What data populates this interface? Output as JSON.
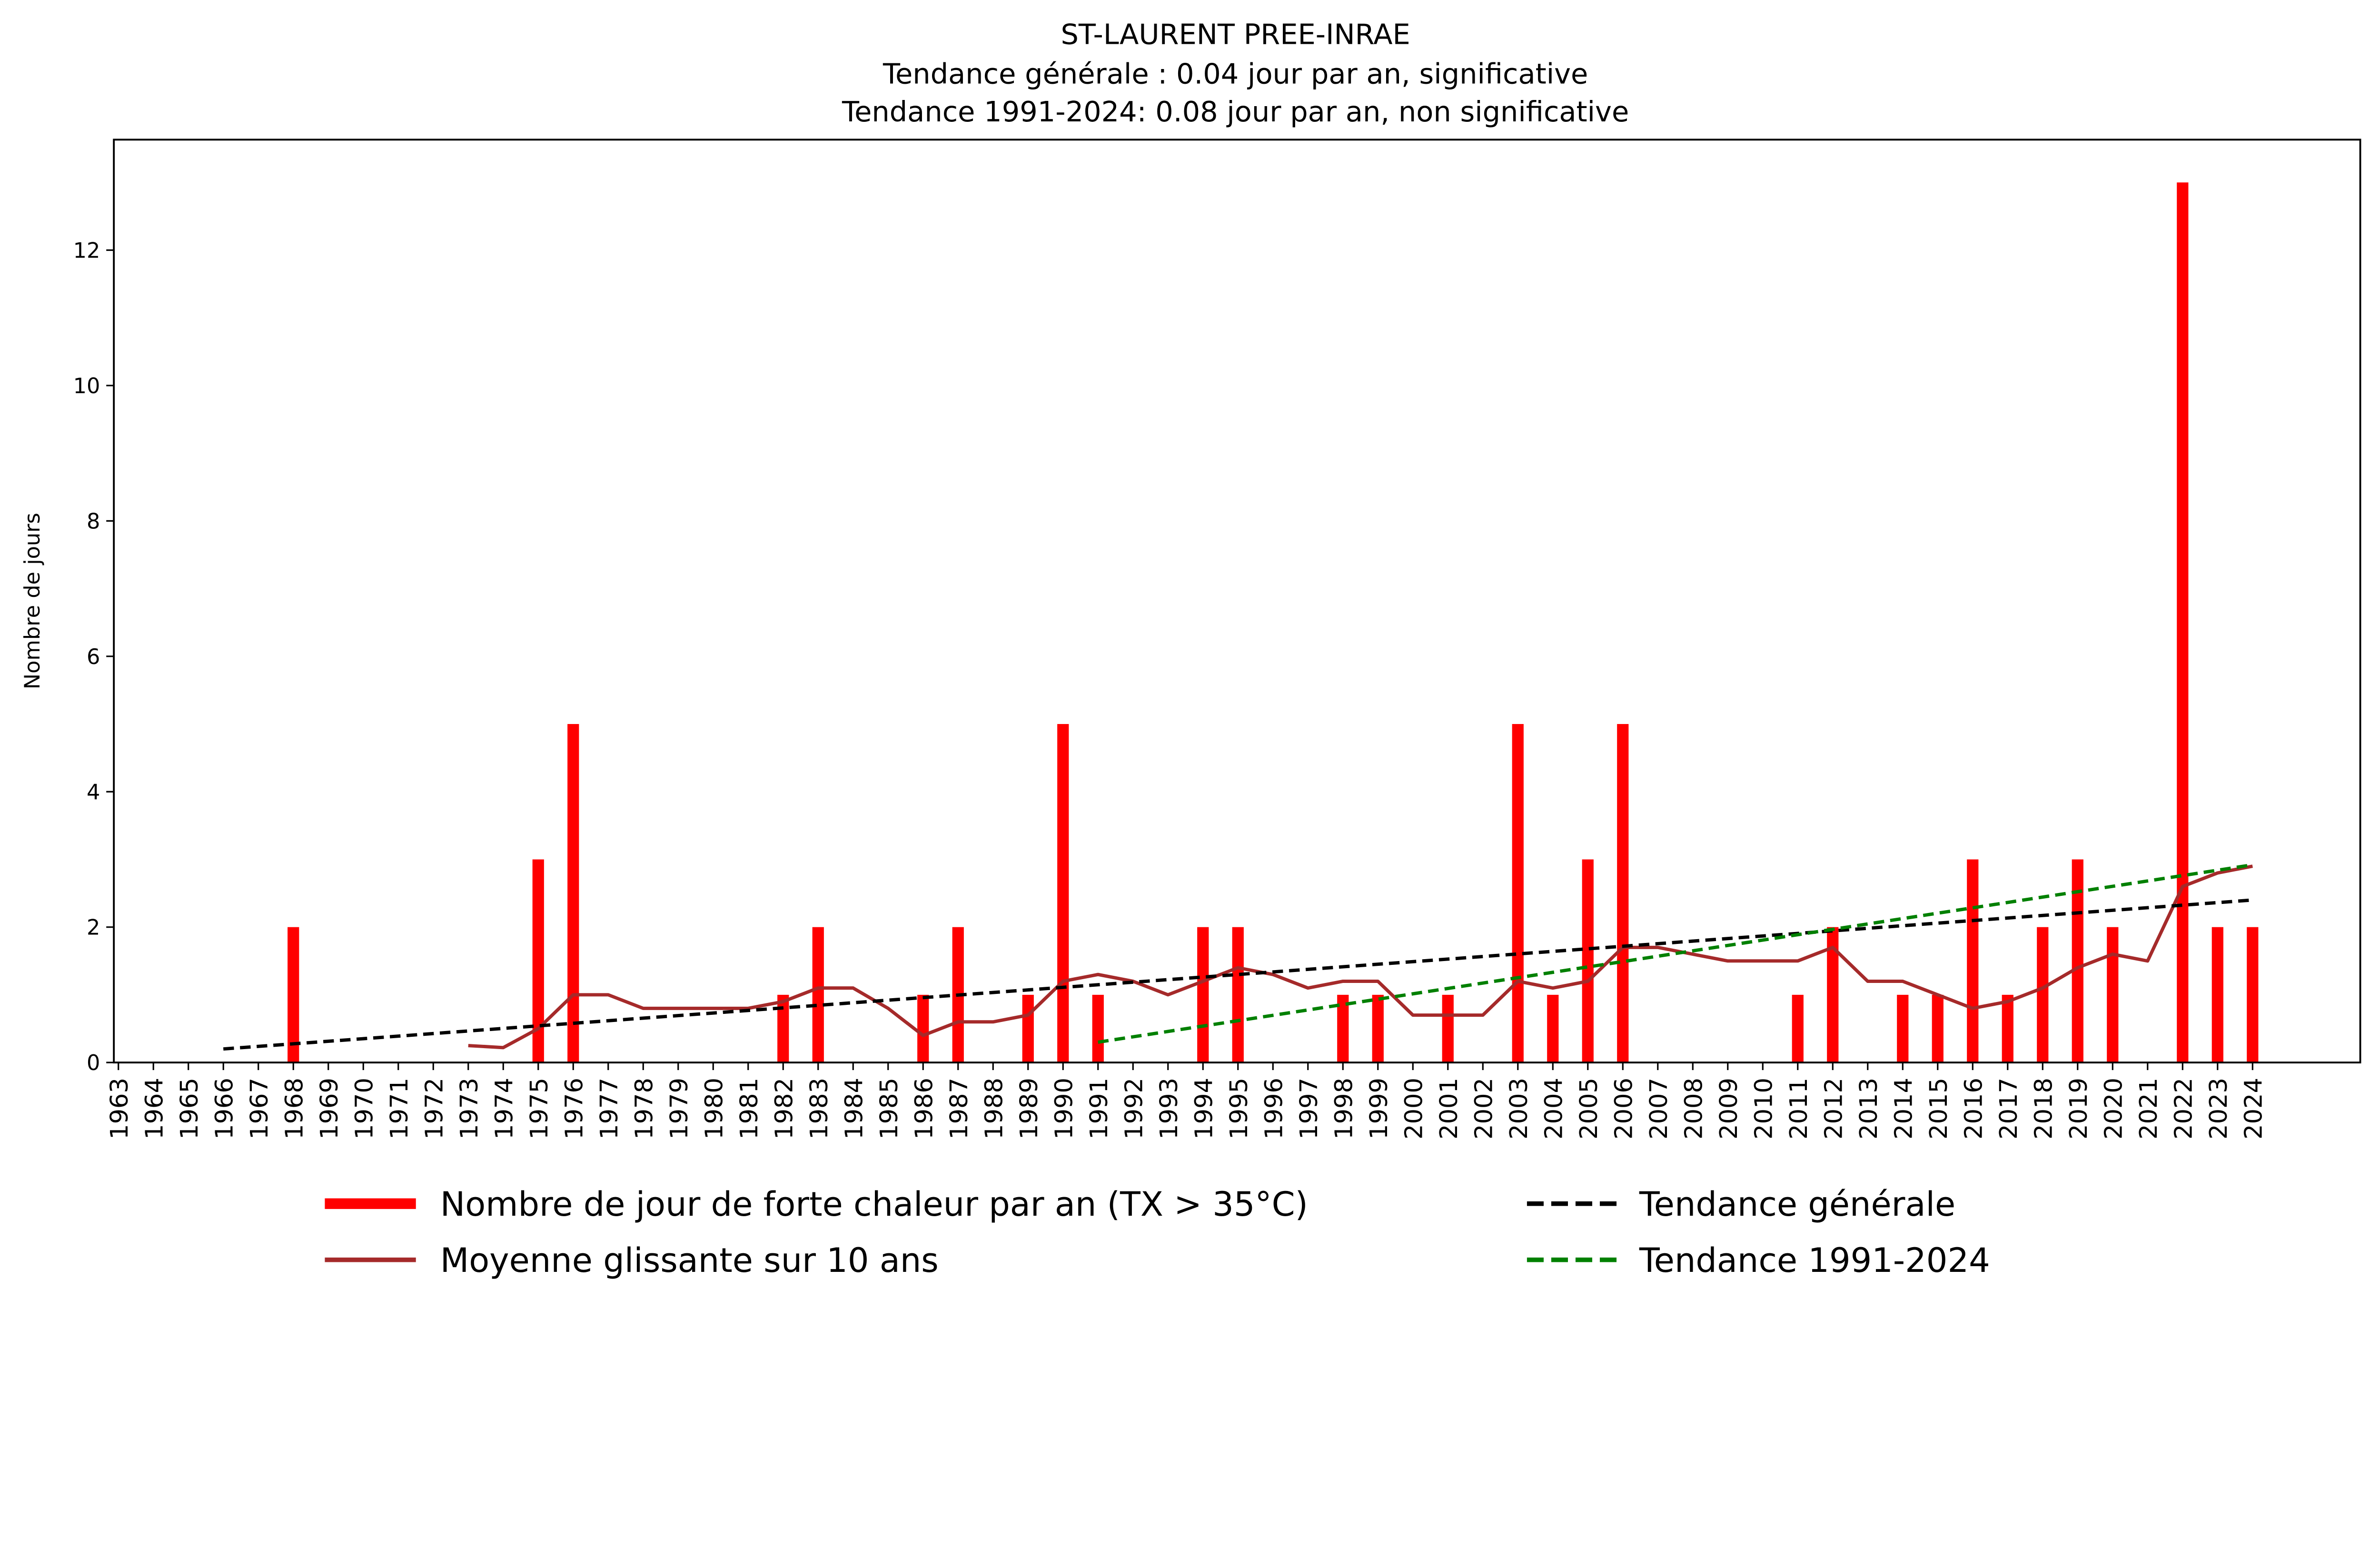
{
  "chart_data": {
    "type": "bar",
    "title": "ST-LAURENT PREE-INRAE",
    "subtitle1": "Tendance générale : 0.04 jour par an, significative",
    "subtitle2": "Tendance 1991-2024: 0.08 jour par an, non significative",
    "xlabel": "",
    "ylabel": "Nombre de jours",
    "ylim": [
      0,
      13.65
    ],
    "yticks": [
      0,
      2,
      4,
      6,
      8,
      10,
      12
    ],
    "years": [
      1963,
      1964,
      1965,
      1966,
      1967,
      1968,
      1969,
      1970,
      1971,
      1972,
      1973,
      1974,
      1975,
      1976,
      1977,
      1978,
      1979,
      1980,
      1981,
      1982,
      1983,
      1984,
      1985,
      1986,
      1987,
      1988,
      1989,
      1990,
      1991,
      1992,
      1993,
      1994,
      1995,
      1996,
      1997,
      1998,
      1999,
      2000,
      2001,
      2002,
      2003,
      2004,
      2005,
      2006,
      2007,
      2008,
      2009,
      2010,
      2011,
      2012,
      2013,
      2014,
      2015,
      2016,
      2017,
      2018,
      2019,
      2020,
      2021,
      2022,
      2023,
      2024
    ],
    "series": [
      {
        "name": "Nombre de jour de forte chaleur par an (TX > 35°C)",
        "type": "bar",
        "color": "#ff0000",
        "values": [
          0,
          0,
          0,
          0,
          0,
          2,
          0,
          0,
          0,
          0,
          0,
          0,
          3,
          5,
          0,
          0,
          0,
          0,
          0,
          1,
          2,
          0,
          0,
          1,
          2,
          0,
          1,
          5,
          1,
          0,
          0,
          2,
          2,
          0,
          0,
          1,
          1,
          0,
          1,
          0,
          5,
          1,
          3,
          5,
          0,
          0,
          0,
          0,
          1,
          2,
          0,
          1,
          1,
          3,
          1,
          2,
          3,
          2,
          0,
          13,
          2,
          2
        ]
      },
      {
        "name": "Moyenne glissante sur 10 ans",
        "type": "line",
        "color": "#a52a2a",
        "x": [
          1973,
          1974,
          1975,
          1976,
          1977,
          1978,
          1979,
          1980,
          1981,
          1982,
          1983,
          1984,
          1985,
          1986,
          1987,
          1988,
          1989,
          1990,
          1991,
          1992,
          1993,
          1994,
          1995,
          1996,
          1997,
          1998,
          1999,
          2000,
          2001,
          2002,
          2003,
          2004,
          2005,
          2006,
          2007,
          2008,
          2009,
          2010,
          2011,
          2012,
          2013,
          2014,
          2015,
          2016,
          2017,
          2018,
          2019,
          2020,
          2021,
          2022,
          2023,
          2024
        ],
        "values": [
          0.25,
          0.22,
          0.5,
          1.0,
          1.0,
          0.8,
          0.8,
          0.8,
          0.8,
          0.9,
          1.1,
          1.1,
          0.8,
          0.4,
          0.6,
          0.6,
          0.7,
          1.2,
          1.3,
          1.2,
          1.0,
          1.2,
          1.4,
          1.3,
          1.1,
          1.2,
          1.2,
          0.7,
          0.7,
          0.7,
          1.2,
          1.1,
          1.2,
          1.7,
          1.7,
          1.6,
          1.5,
          1.5,
          1.5,
          1.7,
          1.2,
          1.2,
          1.0,
          0.8,
          0.9,
          1.1,
          1.4,
          1.6,
          1.5,
          2.6,
          2.8,
          2.9
        ]
      },
      {
        "name": "Tendance générale",
        "type": "dashed-line",
        "color": "#000000",
        "x": [
          1966,
          2024
        ],
        "values": [
          0.2,
          2.4
        ]
      },
      {
        "name": "Tendance 1991-2024",
        "type": "dashed-line",
        "color": "#008000",
        "x": [
          1991,
          2024
        ],
        "values": [
          0.3,
          2.92
        ]
      }
    ],
    "legend_position": "bottom-outside",
    "grid": false
  }
}
